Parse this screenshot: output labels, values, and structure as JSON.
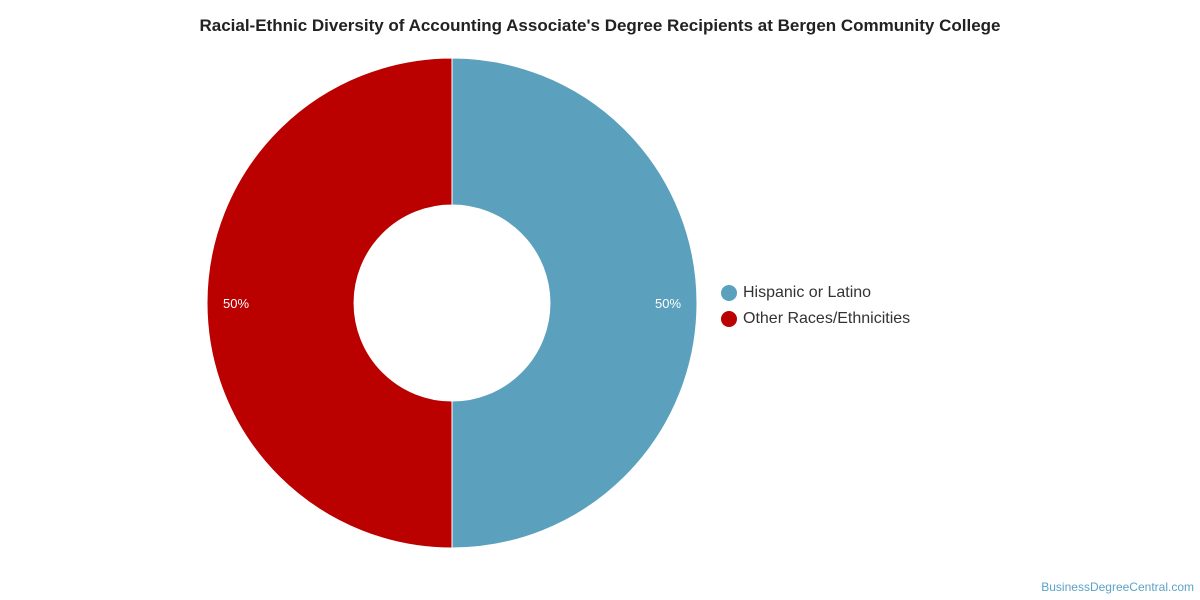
{
  "chart_data": {
    "type": "pie",
    "title": "Racial-Ethnic Diversity of Accounting Associate's Degree Recipients at Bergen Community College",
    "slices": [
      {
        "name": "Hispanic or Latino",
        "value": 50,
        "label": "50%",
        "color": "#5ba1bd"
      },
      {
        "name": "Other Races/Ethnicities",
        "value": 50,
        "label": "50%",
        "color": "#bb0000"
      }
    ],
    "donut": true,
    "legend_position": "right"
  },
  "watermark": "BusinessDegreeCentral.com"
}
